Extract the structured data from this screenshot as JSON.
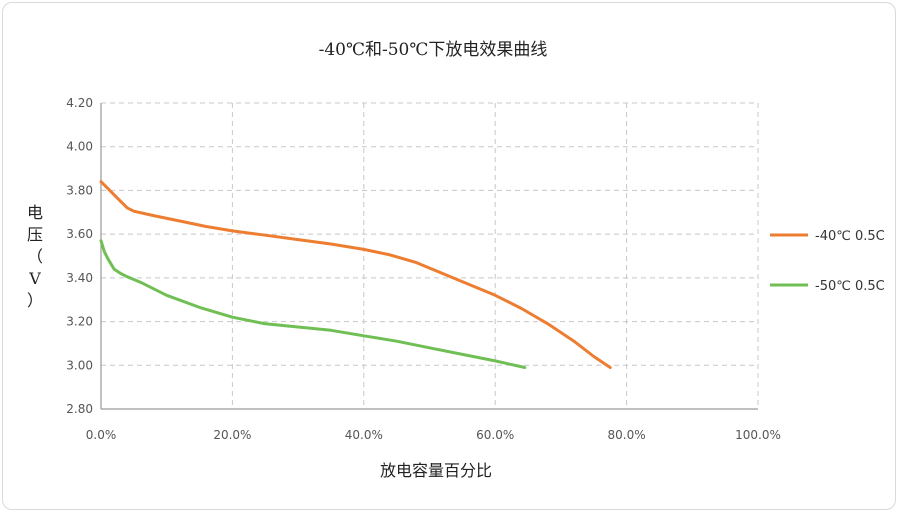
{
  "chart_data": {
    "type": "line",
    "title": "-40℃和-50℃下放电效果曲线",
    "xlabel": "放电容量百分比",
    "ylabel": "电压（V）",
    "xlim": [
      0,
      100
    ],
    "ylim": [
      2.8,
      4.2
    ],
    "x_ticks": [
      0,
      20,
      40,
      60,
      80,
      100
    ],
    "x_tick_labels": [
      "0.0%",
      "20.0%",
      "40.0%",
      "60.0%",
      "80.0%",
      "100.0%"
    ],
    "y_ticks": [
      2.8,
      3.0,
      3.2,
      3.4,
      3.6,
      3.8,
      4.0,
      4.2
    ],
    "y_tick_labels": [
      "2.80",
      "3.00",
      "3.20",
      "3.40",
      "3.60",
      "3.80",
      "4.00",
      "4.20"
    ],
    "grid": true,
    "legend_position": "right",
    "series": [
      {
        "name": "-40℃ 0.5C",
        "color": "#ED7D31",
        "x": [
          0,
          1,
          2,
          3,
          4,
          5,
          8,
          12,
          16,
          20,
          25,
          30,
          35,
          40,
          44,
          48,
          52,
          56,
          60,
          64,
          68,
          72,
          75,
          77.5
        ],
        "y": [
          3.84,
          3.81,
          3.78,
          3.75,
          3.72,
          3.705,
          3.685,
          3.66,
          3.635,
          3.615,
          3.595,
          3.575,
          3.555,
          3.53,
          3.505,
          3.47,
          3.42,
          3.37,
          3.32,
          3.26,
          3.19,
          3.11,
          3.04,
          2.99
        ]
      },
      {
        "name": "-50℃ 0.5C",
        "color": "#70BF55",
        "x": [
          0,
          0.5,
          1,
          2,
          3,
          4,
          6,
          10,
          15,
          20,
          25,
          30,
          35,
          40,
          45,
          50,
          55,
          60,
          64.5
        ],
        "y": [
          3.57,
          3.52,
          3.49,
          3.44,
          3.42,
          3.405,
          3.38,
          3.32,
          3.265,
          3.22,
          3.19,
          3.175,
          3.16,
          3.135,
          3.11,
          3.08,
          3.05,
          3.02,
          2.99
        ]
      }
    ]
  }
}
